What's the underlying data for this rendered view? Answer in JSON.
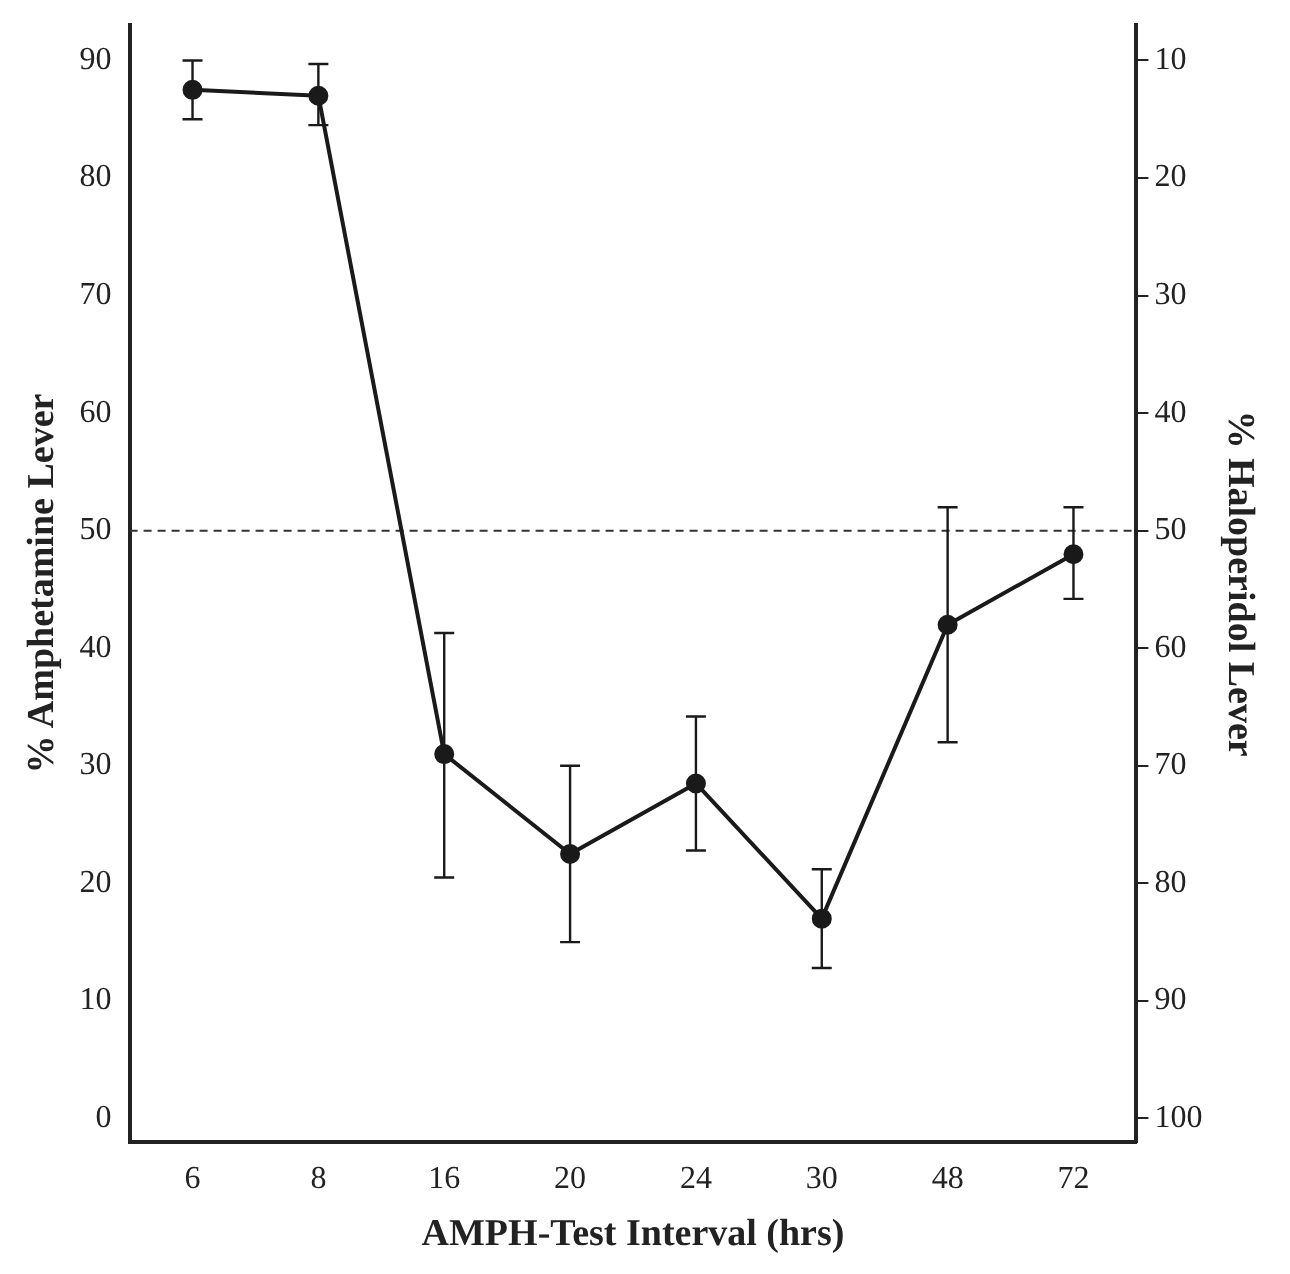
{
  "chart_data": {
    "type": "line",
    "xlabel": "AMPH-Test Interval (hrs)",
    "ylabel": "% Amphetamine Lever",
    "y2label": "% Haloperidol Lever",
    "categories": [
      "6",
      "8",
      "16",
      "20",
      "24",
      "30",
      "48",
      "72"
    ],
    "series": [
      {
        "color": "#1a1a1a",
        "values": [
          87.5,
          87,
          31,
          22.5,
          28.5,
          17,
          42,
          48
        ],
        "errors": [
          [
            85,
            90
          ],
          [
            84.5,
            89.7
          ],
          [
            20.5,
            41.3
          ],
          [
            15,
            30
          ],
          [
            22.8,
            34.2
          ],
          [
            12.8,
            21.2
          ],
          [
            32,
            52
          ],
          [
            44.2,
            52
          ]
        ]
      }
    ],
    "ylim": [
      -2,
      93
    ],
    "yticks": [
      0,
      10,
      20,
      30,
      40,
      50,
      60,
      70,
      80,
      90
    ],
    "y2lim": [
      102,
      7
    ],
    "y2ticks": [
      10,
      20,
      30,
      40,
      50,
      60,
      70,
      80,
      90,
      100
    ],
    "ref_lines": [
      {
        "axis": "y",
        "value": 50,
        "line_style": "dashed",
        "color": "#333333"
      }
    ],
    "grid": false,
    "legend": false,
    "marker": "circle",
    "line_style": "solid"
  }
}
